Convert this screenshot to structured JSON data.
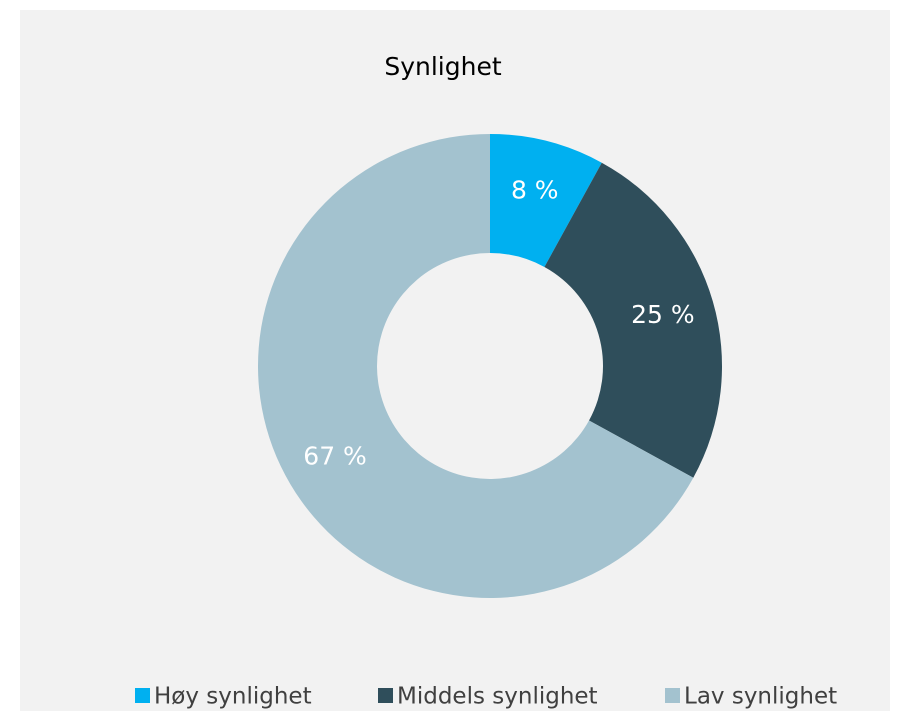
{
  "chart_data": {
    "type": "donut",
    "title": "Synlighet",
    "categories": [
      "Høy synlighet",
      "Middels synlighet",
      "Lav synlighet"
    ],
    "values": [
      8,
      25,
      67
    ],
    "value_labels": [
      "8 %",
      "25 %",
      "67 %"
    ],
    "colors": [
      "#00b0f0",
      "#2f4e5b",
      "#a3c2cf"
    ],
    "legend": "bottom"
  }
}
